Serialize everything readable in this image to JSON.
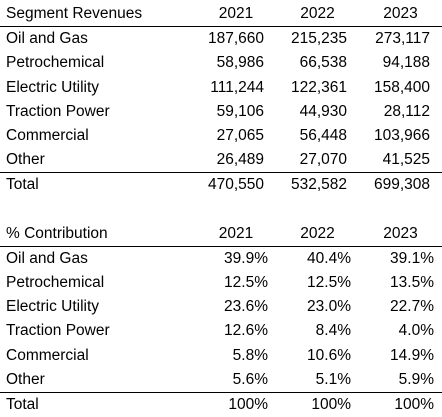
{
  "revenues": {
    "title": "Segment Revenues",
    "years": [
      "2021",
      "2022",
      "2023"
    ],
    "rows": [
      {
        "label": "Oil and Gas",
        "values": [
          "187,660",
          "215,235",
          "273,117"
        ]
      },
      {
        "label": "Petrochemical",
        "values": [
          "58,986",
          "66,538",
          "94,188"
        ]
      },
      {
        "label": "Electric Utility",
        "values": [
          "111,244",
          "122,361",
          "158,400"
        ]
      },
      {
        "label": "Traction Power",
        "values": [
          "59,106",
          "44,930",
          "28,112"
        ]
      },
      {
        "label": "Commercial",
        "values": [
          "27,065",
          "56,448",
          "103,966"
        ]
      },
      {
        "label": "Other",
        "values": [
          "26,489",
          "27,070",
          "41,525"
        ]
      }
    ],
    "total": {
      "label": "Total",
      "values": [
        "470,550",
        "532,582",
        "699,308"
      ]
    }
  },
  "contribution": {
    "title": "% Contribution",
    "years": [
      "2021",
      "2022",
      "2023"
    ],
    "rows": [
      {
        "label": "Oil and Gas",
        "values": [
          "39.9%",
          "40.4%",
          "39.1%"
        ]
      },
      {
        "label": "Petrochemical",
        "values": [
          "12.5%",
          "12.5%",
          "13.5%"
        ]
      },
      {
        "label": "Electric Utility",
        "values": [
          "23.6%",
          "23.0%",
          "22.7%"
        ]
      },
      {
        "label": "Traction Power",
        "values": [
          "12.6%",
          "8.4%",
          "4.0%"
        ]
      },
      {
        "label": "Commercial",
        "values": [
          "5.8%",
          "10.6%",
          "14.9%"
        ]
      },
      {
        "label": "Other",
        "values": [
          "5.6%",
          "5.1%",
          "5.9%"
        ]
      }
    ],
    "total": {
      "label": "Total",
      "values": [
        "100%",
        "100%",
        "100%"
      ]
    }
  }
}
